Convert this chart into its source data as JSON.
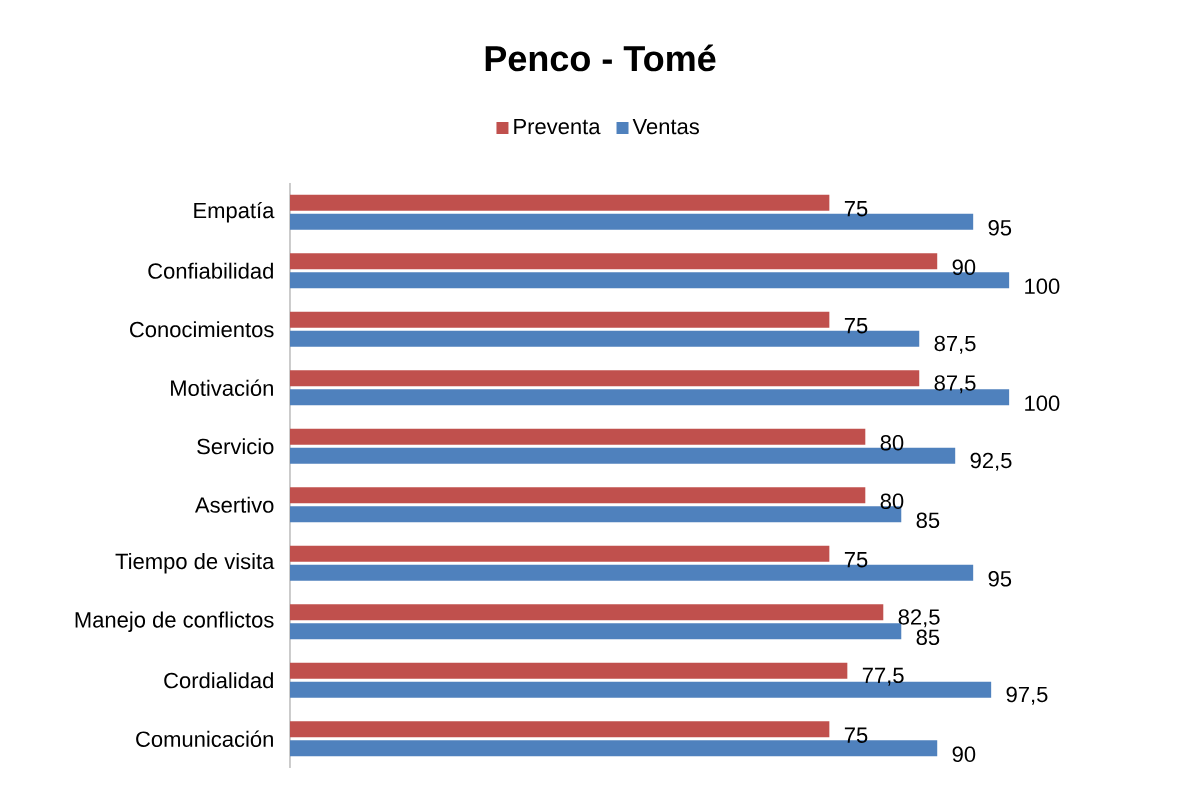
{
  "chart_data": {
    "type": "bar",
    "orientation": "horizontal",
    "title": "Penco - Tomé",
    "legend": "top",
    "tick_labels": "y",
    "categories": [
      "Empatía",
      "Confiabilidad",
      "Conocimientos",
      "Motivación",
      "Servicio",
      "Asertivo",
      "Tiempo de visita",
      "Manejo de conflictos",
      "Cordialidad",
      "Comunicación"
    ],
    "series": [
      {
        "name": "Preventa",
        "color": "#c0504d",
        "values": [
          75,
          90,
          75,
          87.5,
          80,
          80,
          75,
          82.5,
          77.5,
          75
        ],
        "value_labels": [
          "75",
          "90",
          "75",
          "87,5",
          "80",
          "80",
          "75",
          "82,5",
          "77,5",
          "75"
        ]
      },
      {
        "name": "Ventas",
        "color": "#4f81bd",
        "values": [
          95,
          100,
          87.5,
          100,
          92.5,
          85,
          95,
          85,
          97.5,
          90
        ],
        "value_labels": [
          "95",
          "100",
          "87,5",
          "100",
          "92,5",
          "85",
          "95",
          "85",
          "97,5",
          "90"
        ]
      }
    ]
  }
}
